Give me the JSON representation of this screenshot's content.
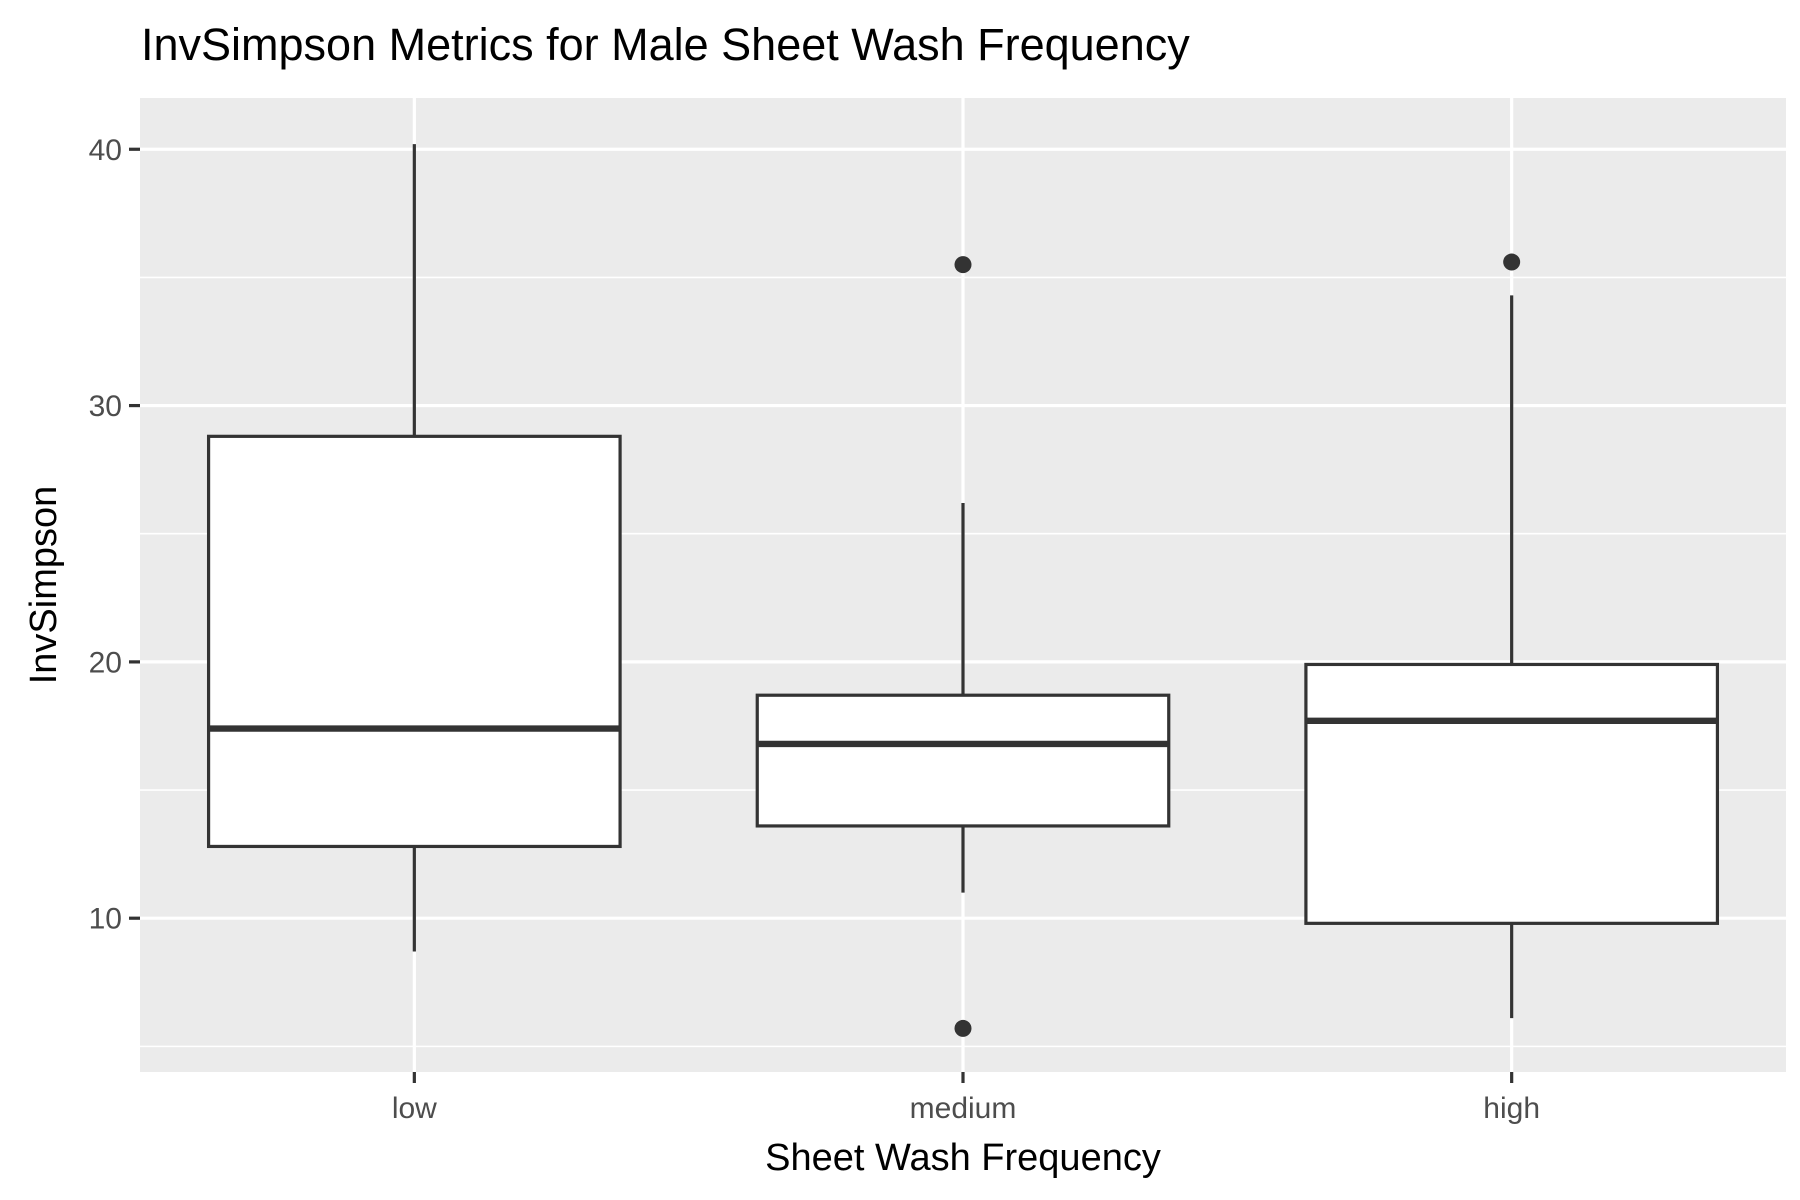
{
  "chart_data": {
    "type": "boxplot",
    "title": "InvSimpson Metrics for Male Sheet Wash Frequency",
    "xlabel": "Sheet Wash Frequency",
    "ylabel": "InvSimpson",
    "categories": [
      "low",
      "medium",
      "high"
    ],
    "ylim": [
      4.0,
      42.0
    ],
    "yticks": [
      10,
      20,
      30,
      40
    ],
    "grid": true,
    "colors": {
      "panel_background": "#ebebeb",
      "grid_line": "#ffffff",
      "box_fill": "#ffffff",
      "box_stroke": "#333333",
      "tick_text": "#4d4d4d"
    },
    "boxes": [
      {
        "category": "low",
        "whisker_low": 8.7,
        "q1": 12.8,
        "median": 17.4,
        "q3": 28.8,
        "whisker_high": 40.2,
        "outliers": []
      },
      {
        "category": "medium",
        "whisker_low": 11.0,
        "q1": 13.6,
        "median": 16.8,
        "q3": 18.7,
        "whisker_high": 26.2,
        "outliers": [
          35.5,
          5.7
        ]
      },
      {
        "category": "high",
        "whisker_low": 6.1,
        "q1": 9.8,
        "median": 17.7,
        "q3": 19.9,
        "whisker_high": 34.3,
        "outliers": [
          35.6
        ]
      }
    ]
  }
}
